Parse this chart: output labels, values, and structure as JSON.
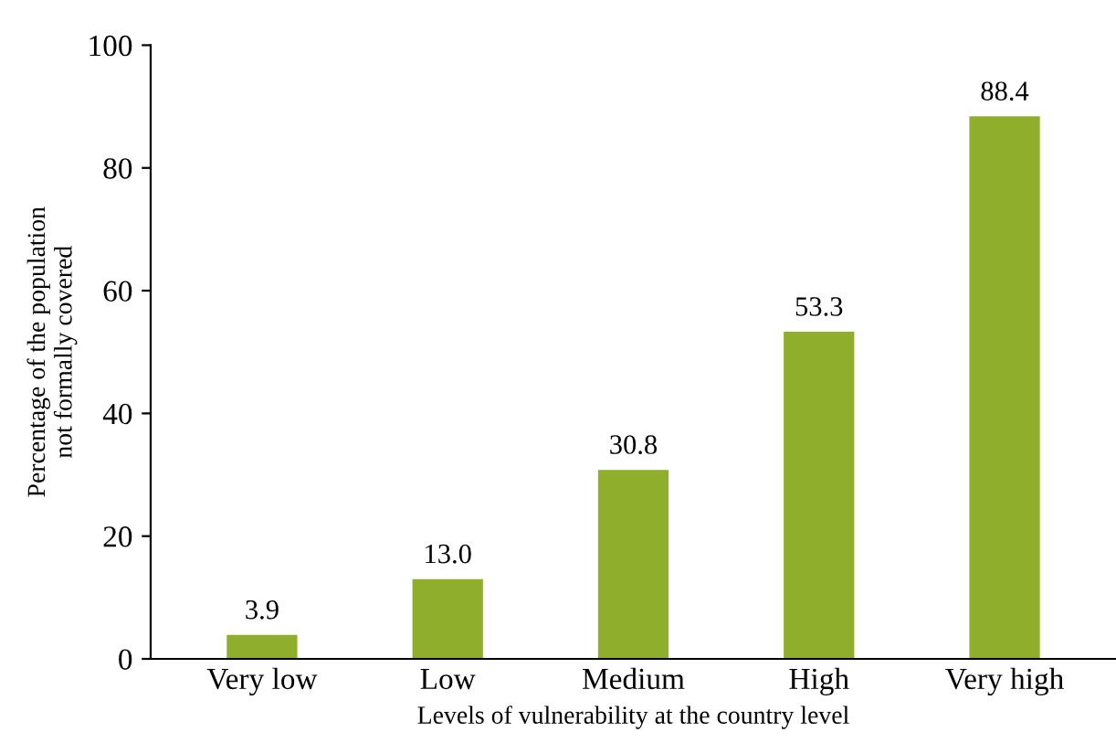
{
  "chart_data": {
    "type": "bar",
    "categories": [
      "Very low",
      "Low",
      "Medium",
      "High",
      "Very high"
    ],
    "values": [
      3.9,
      13.0,
      30.8,
      53.3,
      88.4
    ],
    "value_labels": [
      "3.9",
      "13.0",
      "30.8",
      "53.3",
      "88.4"
    ],
    "color": "#8fae2c",
    "ylim": [
      0,
      100
    ],
    "yticks": [
      0,
      20,
      40,
      60,
      80,
      100
    ],
    "xlabel": "Levels of vulnerability at the country level",
    "ylabel": "Percentage of the population\nnot formally covered",
    "grid": false
  }
}
